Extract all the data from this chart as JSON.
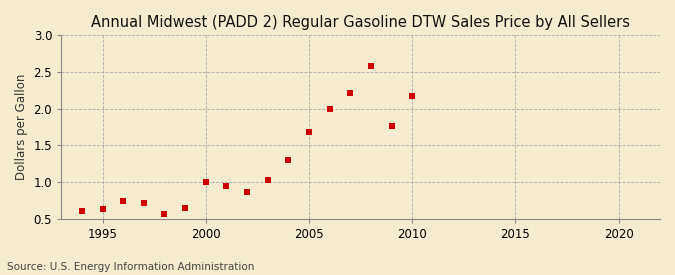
{
  "title": "Annual Midwest (PADD 2) Regular Gasoline DTW Sales Price by All Sellers",
  "ylabel": "Dollars per Gallon",
  "source": "Source: U.S. Energy Information Administration",
  "background_color": "#f5ecd0",
  "plot_bg_color": "#f5ecd0",
  "years": [
    1994,
    1995,
    1996,
    1997,
    1998,
    1999,
    2000,
    2001,
    2002,
    2003,
    2004,
    2005,
    2006,
    2007,
    2008,
    2009,
    2010
  ],
  "values": [
    0.6,
    0.63,
    0.74,
    0.72,
    0.56,
    0.65,
    1.0,
    0.95,
    0.87,
    1.03,
    1.3,
    1.68,
    1.99,
    2.22,
    2.58,
    1.77,
    2.17
  ],
  "marker_color": "#cc0000",
  "marker_size": 4.5,
  "xlim": [
    1993,
    2022
  ],
  "ylim": [
    0.5,
    3.0
  ],
  "xticks": [
    1995,
    2000,
    2005,
    2010,
    2015,
    2020
  ],
  "yticks": [
    0.5,
    1.0,
    1.5,
    2.0,
    2.5,
    3.0
  ],
  "grid_color": "#aaaaaa",
  "title_fontsize": 10.5,
  "axis_label_fontsize": 8.5,
  "tick_fontsize": 8.5,
  "source_fontsize": 7.5
}
